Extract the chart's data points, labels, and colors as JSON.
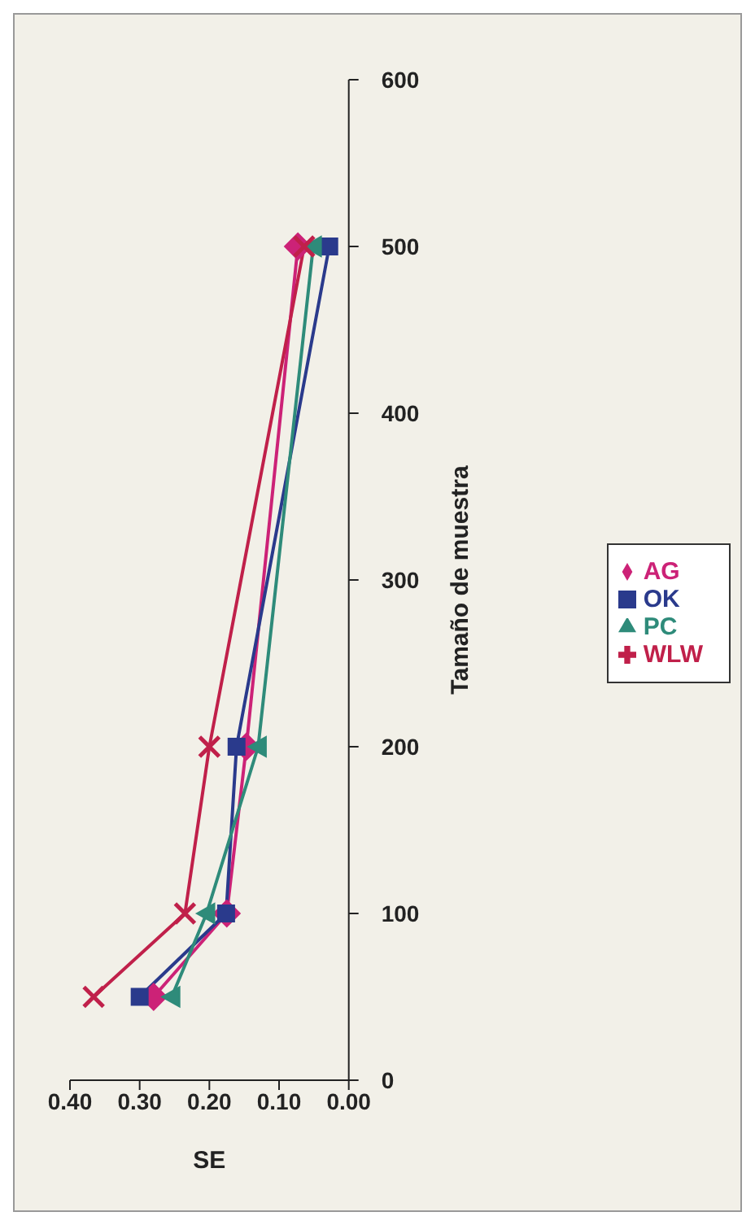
{
  "chart_data": {
    "type": "line",
    "xlabel": "SE",
    "ylabel": "Tamaño de muestra",
    "series": [
      {
        "name": "AG",
        "color": "#cc2277",
        "marker": "diamond",
        "x": [
          0.28,
          0.175,
          0.147,
          0.073
        ],
        "values": [
          50,
          100,
          200,
          500
        ]
      },
      {
        "name": "OK",
        "color": "#2a3a8c",
        "marker": "square",
        "x": [
          0.3,
          0.176,
          0.161,
          0.028
        ],
        "values": [
          50,
          100,
          200,
          500
        ]
      },
      {
        "name": "PC",
        "color": "#2e8b7a",
        "marker": "triangle",
        "x": [
          0.254,
          0.204,
          0.13,
          0.051
        ],
        "values": [
          50,
          100,
          200,
          500
        ]
      },
      {
        "name": "WLW",
        "color": "#c0204a",
        "marker": "cross",
        "x": [
          0.366,
          0.235,
          0.2,
          0.064
        ],
        "values": [
          50,
          100,
          200,
          500
        ]
      }
    ],
    "ylim": [
      0,
      600
    ],
    "yticks": [
      0,
      100,
      200,
      300,
      400,
      500,
      600
    ],
    "xlim": [
      0.4,
      0
    ],
    "xticks": [
      {
        "value": 0.4,
        "label": "0.40"
      },
      {
        "value": 0.3,
        "label": "0.30"
      },
      {
        "value": 0.2,
        "label": "0.20"
      },
      {
        "value": 0.1,
        "label": "0.10"
      },
      {
        "value": 0,
        "label": "0.00"
      }
    ],
    "legend": "right",
    "grid": false,
    "line_style": "solid"
  }
}
